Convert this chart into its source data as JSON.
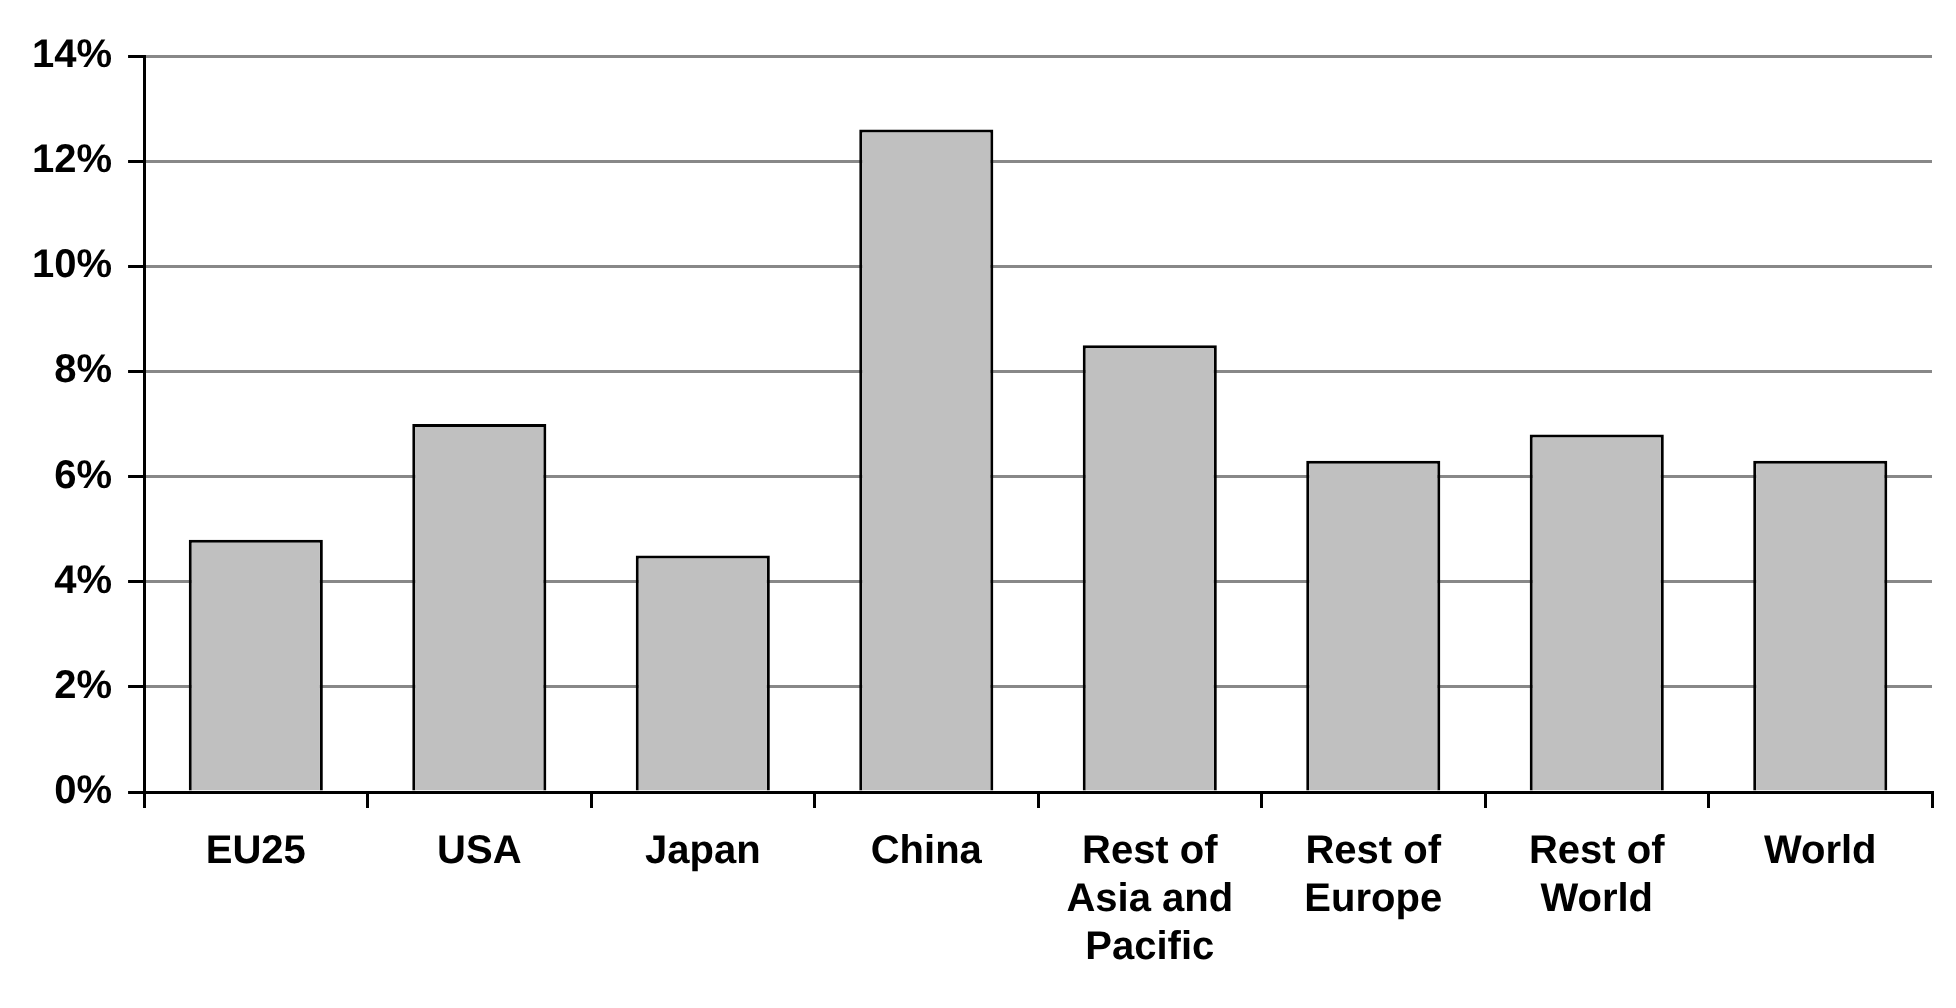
{
  "chart_data": {
    "type": "bar",
    "categories": [
      "EU25",
      "USA",
      "Japan",
      "China",
      "Rest of Asia and Pacific",
      "Rest of Europe",
      "Rest of World",
      "World"
    ],
    "values": [
      4.8,
      7.0,
      4.5,
      12.6,
      8.5,
      6.3,
      6.8,
      6.3
    ],
    "color": "#c0c0c0",
    "ylim": [
      0,
      14
    ],
    "yticks": [
      {
        "value": 0,
        "label": "0%"
      },
      {
        "value": 2,
        "label": "2%"
      },
      {
        "value": 4,
        "label": "4%"
      },
      {
        "value": 6,
        "label": "6%"
      },
      {
        "value": 8,
        "label": "8%"
      },
      {
        "value": 10,
        "label": "10%"
      },
      {
        "value": 12,
        "label": "12%"
      },
      {
        "value": 14,
        "label": "14%"
      }
    ],
    "grid": "y",
    "legend": false
  }
}
